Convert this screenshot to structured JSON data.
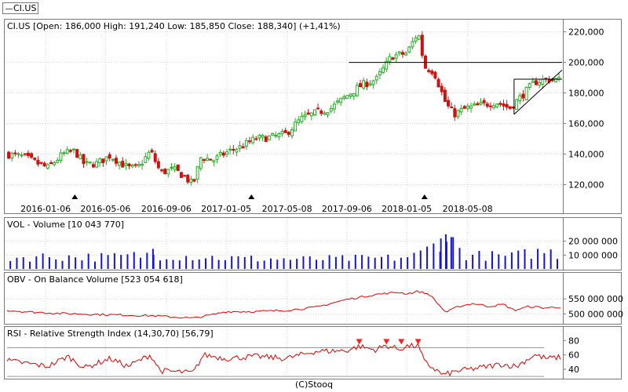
{
  "legend_tab": {
    "label": "CI.US"
  },
  "footer": "(C)Stooq",
  "colors": {
    "up_candle": "#22b022",
    "down_candle": "#d01010",
    "volume": "#1414d8",
    "obv_line": "#e00000",
    "rsi_line": "#e00000",
    "rsi_marker": "#ff2020",
    "grid": "#d8d8d8",
    "frame": "#7a7a7a"
  },
  "chart_data": [
    {
      "type": "candlestick",
      "title": "CI.US [Open: 186,000  High: 191,240  Low: 185,850  Close: 188,340] (+1,41%)",
      "ylim": [
        110,
        228
      ],
      "yticks": [
        {
          "value": 120,
          "label": "120,000"
        },
        {
          "value": 140,
          "label": "140,000"
        },
        {
          "value": 160,
          "label": "160,000"
        },
        {
          "value": 180,
          "label": "180,000"
        },
        {
          "value": 200,
          "label": "200,000"
        },
        {
          "value": 220,
          "label": "220,000"
        }
      ],
      "x_range": [
        "2015-10-20",
        "2018-11-15"
      ],
      "xticks": [
        {
          "date": "2016-01-06",
          "label": "2016-01-06"
        },
        {
          "date": "2016-05-06",
          "label": "2016-05-06"
        },
        {
          "date": "2016-09-06",
          "label": "2016-09-06"
        },
        {
          "date": "2017-01-05",
          "label": "2017-01-05"
        },
        {
          "date": "2017-05-08",
          "label": "2017-05-08"
        },
        {
          "date": "2017-09-06",
          "label": "2017-09-06"
        },
        {
          "date": "2018-01-05",
          "label": "2018-01-05"
        },
        {
          "date": "2018-05-08",
          "label": "2018-05-08"
        }
      ],
      "close_path": [
        [
          "2015-10-20",
          140
        ],
        [
          "2015-11-25",
          138
        ],
        [
          "2015-12-20",
          134
        ],
        [
          "2016-01-10",
          131
        ],
        [
          "2016-02-10",
          140
        ],
        [
          "2016-03-05",
          142
        ],
        [
          "2016-03-25",
          133
        ],
        [
          "2016-04-20",
          134
        ],
        [
          "2016-05-15",
          139
        ],
        [
          "2016-06-20",
          131
        ],
        [
          "2016-07-10",
          131
        ],
        [
          "2016-08-05",
          142
        ],
        [
          "2016-08-25",
          128
        ],
        [
          "2016-09-20",
          130
        ],
        [
          "2016-10-10",
          126
        ],
        [
          "2016-10-30",
          120
        ],
        [
          "2016-11-15",
          138
        ],
        [
          "2016-12-10",
          136
        ],
        [
          "2017-01-05",
          141
        ],
        [
          "2017-02-05",
          145
        ],
        [
          "2017-03-05",
          150
        ],
        [
          "2017-04-05",
          151
        ],
        [
          "2017-05-05",
          153
        ],
        [
          "2017-06-05",
          163
        ],
        [
          "2017-07-05",
          167
        ],
        [
          "2017-08-05",
          170
        ],
        [
          "2017-09-05",
          178
        ],
        [
          "2017-10-05",
          185
        ],
        [
          "2017-11-05",
          189
        ],
        [
          "2017-12-05",
          204
        ],
        [
          "2018-01-05",
          206
        ],
        [
          "2018-01-28",
          220
        ],
        [
          "2018-02-10",
          197
        ],
        [
          "2018-03-01",
          194
        ],
        [
          "2018-03-25",
          173
        ],
        [
          "2018-04-10",
          166
        ],
        [
          "2018-05-05",
          170
        ],
        [
          "2018-06-05",
          172
        ],
        [
          "2018-07-05",
          174
        ],
        [
          "2018-08-01",
          170
        ],
        [
          "2018-08-25",
          178
        ],
        [
          "2018-09-20",
          187
        ],
        [
          "2018-10-15",
          189
        ],
        [
          "2018-11-12",
          188.34
        ]
      ],
      "hlines": [
        {
          "value": 200,
          "from": "2017-09-10",
          "to": "2018-11-15"
        },
        {
          "value": 189,
          "from": "2018-08-10",
          "to": "2018-11-15"
        }
      ],
      "trendline": {
        "from": [
          "2018-08-10",
          166
        ],
        "to": [
          "2018-11-15",
          195
        ]
      },
      "markers": [
        {
          "date": "2016-03-05",
          "shape": "triangle-up"
        },
        {
          "date": "2017-02-25",
          "shape": "triangle-up"
        },
        {
          "date": "2018-02-10",
          "shape": "triangle-up"
        }
      ]
    },
    {
      "type": "bar",
      "title": "VOL - Volume [10 043 770]",
      "ylim": [
        0,
        30000000
      ],
      "yticks": [
        {
          "value": 10000000,
          "label": "10 000 000"
        },
        {
          "value": 20000000,
          "label": "20 000 000"
        }
      ],
      "volume_path": [
        [
          "2015-10-20",
          8000000
        ],
        [
          "2016-01-10",
          9000000
        ],
        [
          "2016-05-20",
          8500000
        ],
        [
          "2016-08-10",
          10500000
        ],
        [
          "2016-10-30",
          9000000
        ],
        [
          "2017-02-05",
          7500000
        ],
        [
          "2017-06-05",
          7000000
        ],
        [
          "2017-10-05",
          7500000
        ],
        [
          "2017-12-20",
          8000000
        ],
        [
          "2018-01-28",
          10000000
        ],
        [
          "2018-03-01",
          17000000
        ],
        [
          "2018-03-25",
          24000000
        ],
        [
          "2018-05-05",
          10000000
        ],
        [
          "2018-08-01",
          9000000
        ],
        [
          "2018-10-15",
          13000000
        ],
        [
          "2018-11-12",
          10043770
        ]
      ],
      "spikes": [
        {
          "date": "2016-08-10",
          "value": 14500000
        },
        {
          "date": "2018-03-15",
          "value": 22000000
        },
        {
          "date": "2018-03-25",
          "value": 25000000
        },
        {
          "date": "2018-04-05",
          "value": 23000000
        }
      ]
    },
    {
      "type": "line",
      "title": "OBV - On Balance Volume [523 054 618]",
      "ylim": [
        470000000,
        600000000
      ],
      "yticks": [
        {
          "value": 500000000,
          "label": "500 000 000"
        },
        {
          "value": 550000000,
          "label": "550 000 000"
        }
      ],
      "series": [
        {
          "points": [
            [
              "2015-10-20",
              512000000
            ],
            [
              "2015-12-01",
              507000000
            ],
            [
              "2016-02-01",
              502000000
            ],
            [
              "2016-05-01",
              498000000
            ],
            [
              "2016-08-10",
              494000000
            ],
            [
              "2016-10-30",
              486000000
            ],
            [
              "2016-12-10",
              498000000
            ],
            [
              "2017-01-05",
              508000000
            ],
            [
              "2017-03-05",
              508000000
            ],
            [
              "2017-05-05",
              512000000
            ],
            [
              "2017-07-05",
              522000000
            ],
            [
              "2017-09-05",
              548000000
            ],
            [
              "2017-11-05",
              565000000
            ],
            [
              "2017-12-20",
              572000000
            ],
            [
              "2018-01-05",
              567000000
            ],
            [
              "2018-01-28",
              575000000
            ],
            [
              "2018-02-20",
              565000000
            ],
            [
              "2018-03-25",
              505000000
            ],
            [
              "2018-04-20",
              525000000
            ],
            [
              "2018-05-20",
              535000000
            ],
            [
              "2018-06-20",
              525000000
            ],
            [
              "2018-07-20",
              532000000
            ],
            [
              "2018-08-10",
              512000000
            ],
            [
              "2018-09-10",
              525000000
            ],
            [
              "2018-10-10",
              520000000
            ],
            [
              "2018-11-12",
              523054618
            ]
          ]
        }
      ]
    },
    {
      "type": "line",
      "title": "RSI - Relative Strength Index (14,30,70) [56,79]",
      "ylim": [
        28,
        88
      ],
      "yticks": [
        {
          "value": 40,
          "label": "40"
        },
        {
          "value": 60,
          "label": "60"
        },
        {
          "value": 80,
          "label": "80"
        }
      ],
      "hlines": [
        {
          "value": 70
        },
        {
          "value": 30
        }
      ],
      "series": [
        {
          "points": [
            [
              "2015-10-20",
              52
            ],
            [
              "2015-12-01",
              48
            ],
            [
              "2016-01-10",
              44
            ],
            [
              "2016-02-20",
              58
            ],
            [
              "2016-03-25",
              42
            ],
            [
              "2016-05-15",
              55
            ],
            [
              "2016-06-20",
              44
            ],
            [
              "2016-08-05",
              60
            ],
            [
              "2016-08-25",
              38
            ],
            [
              "2016-10-30",
              35
            ],
            [
              "2016-11-20",
              60
            ],
            [
              "2017-01-05",
              55
            ],
            [
              "2017-03-05",
              58
            ],
            [
              "2017-05-05",
              55
            ],
            [
              "2017-07-05",
              65
            ],
            [
              "2017-09-05",
              66
            ],
            [
              "2017-10-01",
              72
            ],
            [
              "2017-11-01",
              67
            ],
            [
              "2017-11-25",
              73
            ],
            [
              "2017-12-20",
              68
            ],
            [
              "2018-01-05",
              72
            ],
            [
              "2018-01-28",
              73
            ],
            [
              "2018-02-10",
              50
            ],
            [
              "2018-03-20",
              32
            ],
            [
              "2018-04-20",
              38
            ],
            [
              "2018-06-01",
              42
            ],
            [
              "2018-07-15",
              47
            ],
            [
              "2018-08-15",
              44
            ],
            [
              "2018-09-20",
              60
            ],
            [
              "2018-10-15",
              55
            ],
            [
              "2018-11-12",
              56.79
            ]
          ]
        }
      ],
      "overbought_markers": [
        {
          "date": "2017-10-01"
        },
        {
          "date": "2017-11-25"
        },
        {
          "date": "2017-12-25"
        },
        {
          "date": "2018-01-28"
        }
      ]
    }
  ]
}
